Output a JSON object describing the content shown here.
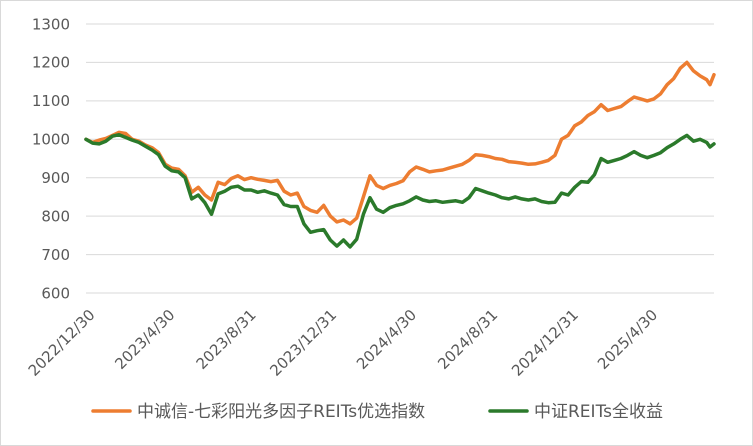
{
  "chart_data": {
    "type": "line",
    "grid": true,
    "legend": "bottom",
    "ylim": [
      600,
      1300
    ],
    "yticks": [
      600,
      700,
      800,
      900,
      1000,
      1100,
      1200,
      1300
    ],
    "xlim": [
      "2022/12/30",
      "2025/8/7"
    ],
    "xticks": [
      "2022/12/30",
      "2023/4/30",
      "2023/8/31",
      "2023/12/31",
      "2024/4/30",
      "2024/8/31",
      "2024/12/31",
      "2025/4/30"
    ],
    "x": [
      "2022/12/30",
      "2023/1/9",
      "2023/1/19",
      "2023/1/29",
      "2023/2/8",
      "2023/2/18",
      "2023/2/28",
      "2023/3/10",
      "2023/3/20",
      "2023/3/30",
      "2023/4/9",
      "2023/4/19",
      "2023/4/29",
      "2023/5/9",
      "2023/5/19",
      "2023/5/29",
      "2023/6/8",
      "2023/6/18",
      "2023/6/28",
      "2023/7/8",
      "2023/7/18",
      "2023/7/28",
      "2023/8/7",
      "2023/8/17",
      "2023/8/27",
      "2023/9/6",
      "2023/9/16",
      "2023/9/26",
      "2023/10/6",
      "2023/10/16",
      "2023/10/26",
      "2023/11/5",
      "2023/11/15",
      "2023/11/25",
      "2023/12/5",
      "2023/12/15",
      "2023/12/25",
      "2024/1/4",
      "2024/1/14",
      "2024/1/24",
      "2024/2/3",
      "2024/2/13",
      "2024/2/23",
      "2024/3/4",
      "2024/3/14",
      "2024/3/24",
      "2024/4/3",
      "2024/4/13",
      "2024/4/23",
      "2024/5/3",
      "2024/5/13",
      "2024/5/23",
      "2024/6/2",
      "2024/6/12",
      "2024/6/22",
      "2024/7/2",
      "2024/7/12",
      "2024/7/22",
      "2024/8/1",
      "2024/8/11",
      "2024/8/21",
      "2024/8/31",
      "2024/9/10",
      "2024/9/20",
      "2024/9/30",
      "2024/10/10",
      "2024/10/20",
      "2024/10/30",
      "2024/11/9",
      "2024/11/19",
      "2024/11/29",
      "2024/12/9",
      "2024/12/19",
      "2024/12/29",
      "2025/1/8",
      "2025/1/18",
      "2025/1/28",
      "2025/2/7",
      "2025/2/17",
      "2025/2/27",
      "2025/3/9",
      "2025/3/19",
      "2025/3/29",
      "2025/4/8",
      "2025/4/18",
      "2025/4/28",
      "2025/5/8",
      "2025/5/18",
      "2025/5/28",
      "2025/6/7",
      "2025/6/17",
      "2025/6/27",
      "2025/7/7",
      "2025/7/17",
      "2025/7/27",
      "2025/8/1",
      "2025/8/7"
    ],
    "series": [
      {
        "name": "中诚信-七彩阳光多因子REITs优选指数",
        "color": "#ED7D31",
        "values": [
          1000,
          992,
          998,
          1002,
          1010,
          1018,
          1015,
          1000,
          995,
          985,
          978,
          965,
          935,
          925,
          922,
          905,
          862,
          875,
          855,
          842,
          888,
          882,
          898,
          905,
          895,
          900,
          896,
          893,
          890,
          893,
          865,
          855,
          860,
          825,
          815,
          810,
          828,
          800,
          785,
          790,
          780,
          795,
          850,
          905,
          880,
          872,
          880,
          885,
          892,
          915,
          928,
          922,
          915,
          918,
          920,
          925,
          930,
          935,
          945,
          960,
          958,
          955,
          950,
          948,
          942,
          940,
          938,
          935,
          936,
          940,
          945,
          958,
          1000,
          1010,
          1035,
          1045,
          1062,
          1072,
          1090,
          1075,
          1080,
          1085,
          1098,
          1110,
          1105,
          1100,
          1105,
          1118,
          1142,
          1158,
          1185,
          1200,
          1178,
          1165,
          1155,
          1142,
          1168
        ]
      },
      {
        "name": "中证REITs全收益",
        "color": "#2B7A2B",
        "values": [
          1000,
          990,
          988,
          995,
          1008,
          1012,
          1005,
          998,
          992,
          982,
          972,
          960,
          930,
          918,
          915,
          900,
          845,
          855,
          835,
          805,
          858,
          865,
          875,
          878,
          868,
          868,
          862,
          866,
          860,
          855,
          830,
          825,
          825,
          780,
          758,
          762,
          765,
          738,
          722,
          738,
          720,
          740,
          805,
          848,
          818,
          810,
          822,
          828,
          832,
          840,
          850,
          842,
          838,
          840,
          836,
          838,
          840,
          836,
          848,
          872,
          866,
          860,
          855,
          848,
          845,
          850,
          845,
          842,
          845,
          838,
          835,
          836,
          860,
          855,
          875,
          890,
          888,
          908,
          950,
          940,
          945,
          950,
          958,
          968,
          958,
          952,
          958,
          965,
          978,
          988,
          1000,
          1010,
          995,
          1000,
          992,
          980,
          988
        ]
      }
    ]
  }
}
